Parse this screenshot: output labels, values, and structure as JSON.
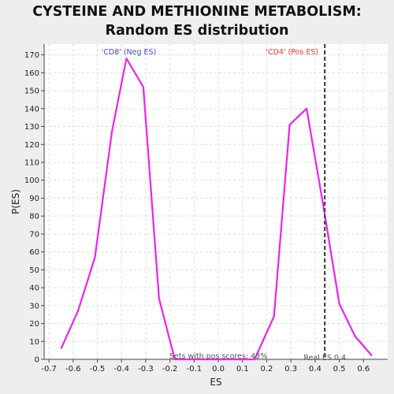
{
  "chart_data": {
    "type": "line",
    "title": "CYSTEINE AND METHIONINE METABOLISM: Random ES distribution",
    "xlabel": "ES",
    "ylabel": "P(ES)",
    "xlim": [
      -0.72,
      0.7
    ],
    "ylim": [
      0,
      176
    ],
    "x_ticks": [
      "-0.7",
      "-0.6",
      "-0.5",
      "-0.4",
      "-0.3",
      "-0.2",
      "-0.1",
      "0.0",
      "0.1",
      "0.2",
      "0.3",
      "0.4",
      "0.5",
      "0.6"
    ],
    "x_tick_values": [
      -0.7,
      -0.6,
      -0.5,
      -0.4,
      -0.3,
      -0.2,
      -0.1,
      0.0,
      0.1,
      0.2,
      0.3,
      0.4,
      0.5,
      0.6
    ],
    "y_ticks": [
      0,
      10,
      20,
      30,
      40,
      50,
      60,
      70,
      80,
      90,
      100,
      110,
      120,
      130,
      140,
      150,
      160,
      170
    ],
    "grid": true,
    "series": [
      {
        "color": "#ee22ee",
        "x": [
          -0.65,
          -0.58,
          -0.51,
          -0.44,
          -0.38,
          -0.31,
          -0.245,
          -0.18,
          -0.12,
          -0.05,
          0.02,
          0.09,
          0.15,
          0.23,
          0.295,
          0.365,
          0.435,
          0.5,
          0.565,
          0.635
        ],
        "y": [
          6,
          27,
          57,
          127,
          168,
          152,
          34,
          0,
          0,
          0,
          0,
          0,
          0,
          24,
          131,
          140,
          85,
          31,
          13,
          2
        ]
      }
    ],
    "annotations": {
      "neg_label": "'CD8' (Neg ES)",
      "pos_label": "'CD4' (Pos ES)",
      "neg_color": "#4444dd",
      "pos_color": "#ee3333",
      "sets_text": "Sets with pos scores: 43%",
      "real_es_text": "Real ES 0.4",
      "real_es_value": 0.44
    }
  }
}
